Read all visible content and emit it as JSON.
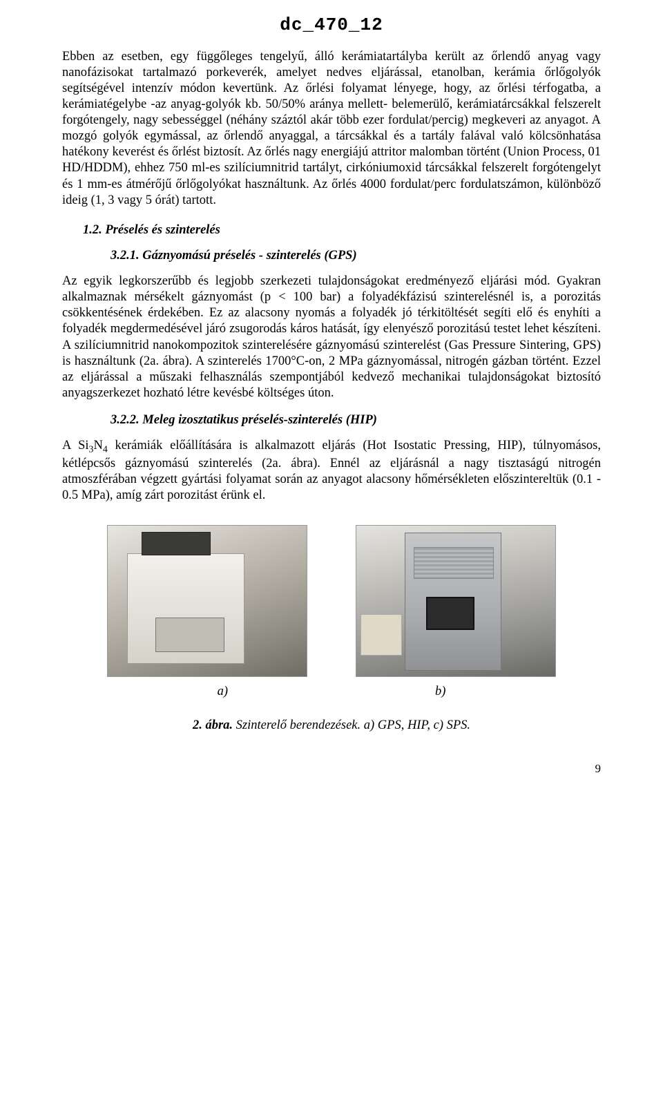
{
  "header": {
    "doc_id": "dc_470_12"
  },
  "paragraphs": {
    "p1": "Ebben az esetben, egy függőleges tengelyű, álló kerámiatartályba került az őrlendő anyag vagy nanofázisokat tartalmazó porkeverék, amelyet nedves eljárással, etanolban, kerámia őrlőgolyók segítségével intenzív módon kevertünk. Az őrlési folyamat lényege, hogy, az őrlési térfogatba, a kerámiatégelybe -az anyag-golyók kb. 50/50% aránya mellett- belemerülő, kerámiatárcsákkal felszerelt forgótengely, nagy sebességgel (néhány száztól akár több ezer fordulat/percig) megkeveri az anyagot. A mozgó golyók egymással, az őrlendő anyaggal, a tárcsákkal és a tartály falával való kölcsönhatása hatékony keverést és őrlést biztosít. Az őrlés nagy energiájú attritor malomban történt (Union Process, 01 HD/HDDM), ehhez 750 ml-es szilíciumnitrid tartályt, cirkóniumoxid tárcsákkal felszerelt forgótengelyt és 1 mm-es átmérőjű őrlőgolyókat használtunk. Az őrlés 4000 fordulat/perc fordulatszámon, különböző ideig (1, 3 vagy 5 órát) tartott.",
    "h1": "1.2. Préselés és szinterelés",
    "h2": "3.2.1. Gáznyomású préselés - szinterelés (GPS)",
    "p2": "Az egyik legkorszerűbb és legjobb szerkezeti tulajdonságokat eredményező eljárási mód. Gyakran alkalmaznak mérsékelt gáznyomást (p < 100 bar) a folyadékfázisú szinterelésnél is, a porozitás csökkentésének érdekében. Ez az alacsony nyomás a folyadék jó térkitöltését segíti elő és enyhíti a folyadék megdermedésével járó zsugorodás káros hatását, így elenyésző porozitású testet lehet készíteni. A szilíciumnitrid nanokompozitok szinterelésére gáznyomású szinterelést (Gas Pressure Sintering, GPS) is használtunk (2a. ábra). A szinterelés 1700°C-on, 2 MPa gáznyomással, nitrogén gázban történt. Ezzel az eljárással a műszaki felhasználás szempontjából kedvező mechanikai tulajdonságokat biztosító anyagszerkezet hozható létre kevésbé költséges úton.",
    "h3": "3.2.2. Meleg izosztatikus préselés-szinterelés (HIP)",
    "p3_before_sub": "A Si",
    "p3_sub1": "3",
    "p3_mid": "N",
    "p3_sub2": "4",
    "p3_after_sub": " kerámiák előállítására is alkalmazott eljárás (Hot Isostatic Pressing, HIP), túlnyomásos, kétlépcsős gáznyomású szinterelés (2a. ábra). Ennél az eljárásnál a nagy tisztaságú nitrogén atmoszférában végzett gyártási folyamat során az anyagot alacsony hőmérsékleten előszintereltük (0.1 - 0.5 MPa), amíg zárt porozitást érünk el."
  },
  "figure_labels": {
    "a": "a)",
    "b": "b)"
  },
  "figure_caption": {
    "num": "2.",
    "lead": "ábra.",
    "text": "Szinterelő berendezések. a) GPS, HIP, c) SPS."
  },
  "page_number": "9",
  "colors": {
    "text": "#000000",
    "background": "#ffffff"
  }
}
